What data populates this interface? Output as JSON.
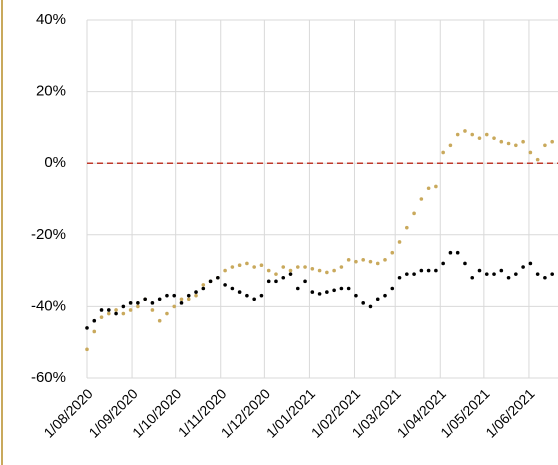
{
  "chart_data": {
    "type": "line",
    "x": [
      "1/08/2020",
      "6/08/2020",
      "11/08/2020",
      "16/08/2020",
      "21/08/2020",
      "26/08/2020",
      "31/08/2020",
      "5/09/2020",
      "10/09/2020",
      "15/09/2020",
      "20/09/2020",
      "25/09/2020",
      "30/09/2020",
      "5/10/2020",
      "10/10/2020",
      "15/10/2020",
      "20/10/2020",
      "25/10/2020",
      "30/10/2020",
      "4/11/2020",
      "9/11/2020",
      "14/11/2020",
      "19/11/2020",
      "24/11/2020",
      "29/11/2020",
      "4/12/2020",
      "9/12/2020",
      "14/12/2020",
      "19/12/2020",
      "24/12/2020",
      "29/12/2020",
      "3/01/2021",
      "8/01/2021",
      "13/01/2021",
      "18/01/2021",
      "23/01/2021",
      "28/01/2021",
      "2/02/2021",
      "7/02/2021",
      "12/02/2021",
      "17/02/2021",
      "22/02/2021",
      "27/02/2021",
      "4/03/2021",
      "9/03/2021",
      "14/03/2021",
      "19/03/2021",
      "24/03/2021",
      "29/03/2021",
      "3/04/2021",
      "8/04/2021",
      "13/04/2021",
      "18/04/2021",
      "23/04/2021",
      "28/04/2021",
      "3/05/2021",
      "8/05/2021",
      "13/05/2021",
      "18/05/2021",
      "23/05/2021",
      "28/05/2021",
      "2/06/2021",
      "7/06/2021",
      "12/06/2021",
      "17/06/2021"
    ],
    "series": [
      {
        "color": "#c9a95c",
        "values": [
          -52,
          -47,
          -43,
          -42,
          -41,
          -42,
          -41,
          -40,
          -38,
          -41,
          -44,
          -42,
          -40,
          -38,
          -38,
          -37,
          -34,
          -33,
          -32,
          -30,
          -29,
          -28.5,
          -28,
          -29,
          -28.5,
          -30,
          -31,
          -29,
          -30,
          -29,
          -29,
          -29.5,
          -30,
          -30.5,
          -30,
          -29,
          -27,
          -27.5,
          -27,
          -27.5,
          -28,
          -27,
          -25,
          -22,
          -18,
          -14,
          -10,
          -7,
          -6.5,
          3,
          5,
          8,
          9,
          8,
          7,
          8,
          7,
          6,
          5.5,
          5,
          6,
          3,
          1,
          5,
          6
        ]
      },
      {
        "color": "#000000",
        "values": [
          -46,
          -44,
          -41,
          -41,
          -42,
          -40,
          -39,
          -39,
          -38,
          -39,
          -38,
          -37,
          -37,
          -39,
          -37,
          -36,
          -35,
          -33,
          -32,
          -34,
          -35,
          -36,
          -37,
          -38,
          -37,
          -33,
          -33,
          -32,
          -31,
          -35,
          -33,
          -36,
          -36.5,
          -36,
          -35.5,
          -35,
          -35,
          -37,
          -39,
          -40,
          -38,
          -37,
          -35,
          -32,
          -31,
          -31,
          -30,
          -30,
          -30,
          -28,
          -25,
          -25,
          -28,
          -32,
          -30,
          -31,
          -31,
          -30,
          -32,
          -31,
          -29,
          -28,
          -31,
          -32,
          -31
        ]
      }
    ],
    "xlim": [
      "1/08/2020",
      "21/06/2021"
    ],
    "xticks": [
      "1/08/2020",
      "1/09/2020",
      "1/10/2020",
      "1/11/2020",
      "1/12/2020",
      "1/01/2021",
      "1/02/2021",
      "1/03/2021",
      "1/04/2021",
      "1/05/2021",
      "1/06/2021"
    ],
    "ylim": [
      -60,
      40
    ],
    "yticks": [
      {
        "value": -60,
        "label": "-60%"
      },
      {
        "value": -40,
        "label": "-40%"
      },
      {
        "value": -20,
        "label": "-20%"
      },
      {
        "value": 0,
        "label": "0%"
      },
      {
        "value": 20,
        "label": "20%"
      },
      {
        "value": 40,
        "label": "40%"
      }
    ],
    "grid": true,
    "marker": "dot",
    "reference_line": {
      "value": 0,
      "color": "#c0392b",
      "style": "dashed"
    }
  }
}
